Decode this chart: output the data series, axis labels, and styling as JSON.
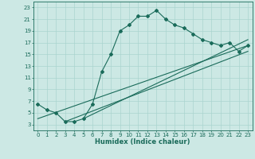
{
  "title": "",
  "xlabel": "Humidex (Indice chaleur)",
  "bg_color": "#cce8e4",
  "line_color": "#1a6b5a",
  "xlim": [
    -0.5,
    23.5
  ],
  "ylim": [
    2,
    24
  ],
  "xticks": [
    0,
    1,
    2,
    3,
    4,
    5,
    6,
    7,
    8,
    9,
    10,
    11,
    12,
    13,
    14,
    15,
    16,
    17,
    18,
    19,
    20,
    21,
    22,
    23
  ],
  "yticks": [
    3,
    5,
    7,
    9,
    11,
    13,
    15,
    17,
    19,
    21,
    23
  ],
  "main_x": [
    0,
    1,
    2,
    3,
    4,
    5,
    6,
    7,
    8,
    9,
    10,
    11,
    12,
    13,
    14,
    15,
    16,
    17,
    18,
    19,
    20,
    21,
    22,
    23
  ],
  "main_y": [
    6.5,
    5.5,
    5.0,
    3.5,
    3.5,
    4.0,
    6.5,
    12.0,
    15.0,
    19.0,
    20.0,
    21.5,
    21.5,
    22.5,
    21.0,
    20.0,
    19.5,
    18.5,
    17.5,
    17.0,
    16.5,
    17.0,
    15.5,
    16.5
  ],
  "line2_x": [
    0,
    23
  ],
  "line2_y": [
    4.0,
    16.5
  ],
  "line3_x": [
    3,
    23
  ],
  "line3_y": [
    3.5,
    15.5
  ],
  "line4_x": [
    5,
    23
  ],
  "line4_y": [
    4.0,
    17.5
  ],
  "grid_color": "#aad4cf",
  "markersize": 2.0,
  "linewidth": 0.8,
  "tick_fontsize": 5.0,
  "xlabel_fontsize": 6.0
}
